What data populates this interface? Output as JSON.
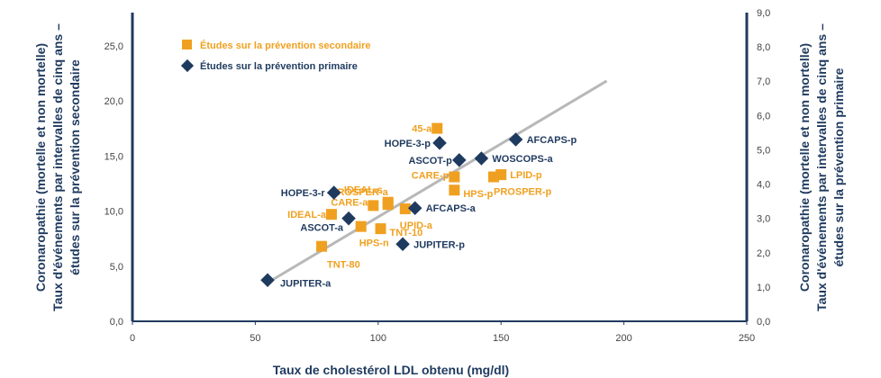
{
  "chart_data": {
    "type": "scatter",
    "xlabel": "Taux de cholestérol LDL obtenu (mg/dl)",
    "ylabel_left_line1": "Coronaropathie (mortelle et non mortelle)",
    "ylabel_left_line2": "Taux d'événements par intervalles de cinq ans –",
    "ylabel_left_line3": "études sur la prévention secondaire",
    "ylabel_right_line1": "Coronaropathie (mortelle et non mortelle)",
    "ylabel_right_line2": "Taux d'événements par intervalles de cinq ans –",
    "ylabel_right_line3": "études sur la prévention primaire",
    "xlim": [
      0,
      250
    ],
    "ylim_left": [
      0,
      28
    ],
    "ylim_right": [
      0,
      9
    ],
    "x_ticks": [
      "0",
      "50",
      "100",
      "150",
      "200",
      "250"
    ],
    "y_left_ticks": [
      "0,0",
      "5,0",
      "10,0",
      "15,0",
      "20,0",
      "25,0"
    ],
    "y_right_ticks": [
      "0,0",
      "1,0",
      "2,0",
      "3,0",
      "4,0",
      "5,0",
      "6,0",
      "7,0",
      "8,0",
      "9,0"
    ],
    "colors": {
      "secondary": "#f0a020",
      "primary": "#1f3a5f",
      "trend": "#b8b8b8",
      "axis": "#1f3a5f"
    },
    "series": [
      {
        "name": "Études sur la prévention secondaire",
        "marker": "square",
        "points": [
          {
            "label": "45-a",
            "x": 124,
            "y": 17.5
          },
          {
            "label": "CARE-p",
            "x": 131,
            "y": 13.1
          },
          {
            "label": "LPID-p",
            "x": 150,
            "y": 13.3
          },
          {
            "label": "PROSPER-p",
            "x": 147,
            "y": 13.1
          },
          {
            "label": "HPS-p",
            "x": 131,
            "y": 11.9
          },
          {
            "label": "IDEAL-s",
            "x": 104,
            "y": 10.8
          },
          {
            "label": "PROSPER-a",
            "x": 104,
            "y": 10.6
          },
          {
            "label": "CARE-a",
            "x": 98,
            "y": 10.5
          },
          {
            "label": "IDEAL-a",
            "x": 81,
            "y": 9.7
          },
          {
            "label": "UPID-a",
            "x": 111,
            "y": 10.2
          },
          {
            "label": "TNT-10",
            "x": 101,
            "y": 8.4
          },
          {
            "label": "HPS-n",
            "x": 93,
            "y": 8.6
          },
          {
            "label": "TNT-80",
            "x": 77,
            "y": 6.8
          }
        ]
      },
      {
        "name": "Études sur la prévention primaire",
        "marker": "diamond",
        "points": [
          {
            "label": "HOPE-3-p",
            "x": 125,
            "y": 5.2
          },
          {
            "label": "AFCAPS-p",
            "x": 156,
            "y": 5.3
          },
          {
            "label": "ASCOT-p",
            "x": 133,
            "y": 4.7
          },
          {
            "label": "WOSCOPS-a",
            "x": 142,
            "y": 4.75
          },
          {
            "label": "HOPE-3-r",
            "x": 82,
            "y": 3.75
          },
          {
            "label": "AFCAPS-a",
            "x": 115,
            "y": 3.3
          },
          {
            "label": "ASCOT-a",
            "x": 88,
            "y": 3.0
          },
          {
            "label": "JUPITER-p",
            "x": 110,
            "y": 2.25
          },
          {
            "label": "JUPITER-a",
            "x": 55,
            "y": 1.2
          }
        ]
      }
    ],
    "trendline": {
      "x": [
        55,
        193
      ],
      "y": [
        3.5,
        21.8
      ]
    },
    "legend": {
      "position": "top-left"
    },
    "grid": false
  }
}
